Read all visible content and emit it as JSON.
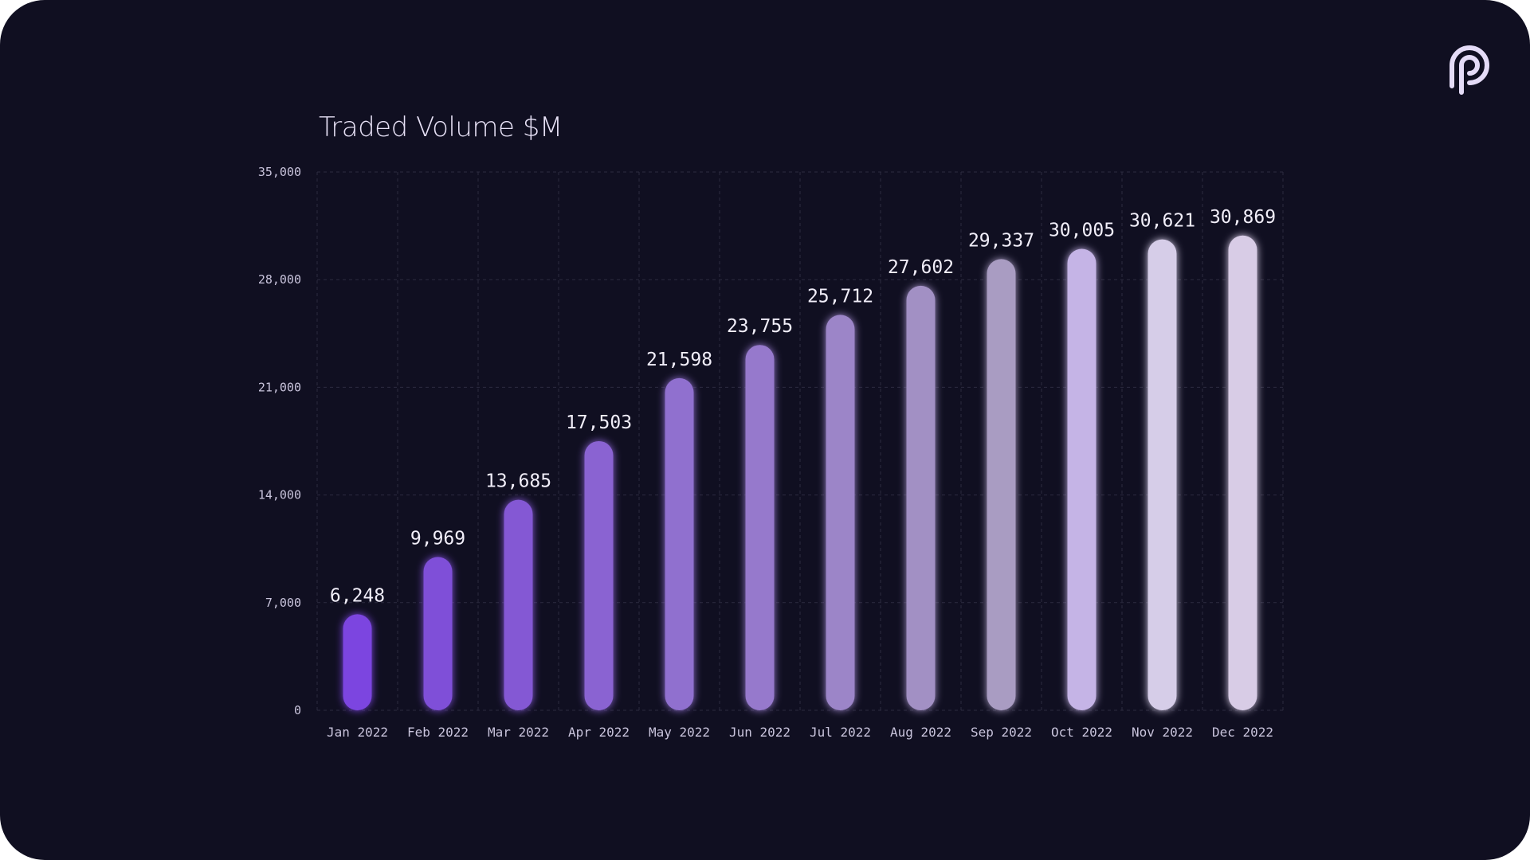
{
  "logo": {
    "icon": "pyth-logo-icon",
    "color": "#e4dbf7"
  },
  "chart_data": {
    "type": "bar",
    "title": "Traded Volume $M",
    "xlabel": "",
    "ylabel": "",
    "categories": [
      "Jan 2022",
      "Feb 2022",
      "Mar 2022",
      "Apr 2022",
      "May 2022",
      "Jun 2022",
      "Jul 2022",
      "Aug 2022",
      "Sep 2022",
      "Oct 2022",
      "Nov 2022",
      "Dec 2022"
    ],
    "values": [
      6248,
      9969,
      13685,
      17503,
      21598,
      23755,
      25712,
      27602,
      29337,
      30005,
      30621,
      30869
    ],
    "value_labels": [
      "6,248",
      "9,969",
      "13,685",
      "17,503",
      "21,598",
      "23,755",
      "25,712",
      "27,602",
      "29,337",
      "30,005",
      "30,621",
      "30,869"
    ],
    "ylim": [
      0,
      35000
    ],
    "yticks": [
      0,
      7000,
      14000,
      21000,
      28000,
      35000
    ],
    "ytick_labels": [
      "0",
      "7,000",
      "14,000",
      "21,000",
      "28,000",
      "35,000"
    ],
    "grid": true,
    "legend": "none",
    "bar_colors": [
      "#7b45e0",
      "#7f4fd8",
      "#8459d4",
      "#8a63d2",
      "#9070cf",
      "#9679cc",
      "#9c85c8",
      "#a290c4",
      "#a99cc2",
      "#c5b4e6",
      "#d6cde8",
      "#d8cce6"
    ],
    "background": "#100f21"
  }
}
